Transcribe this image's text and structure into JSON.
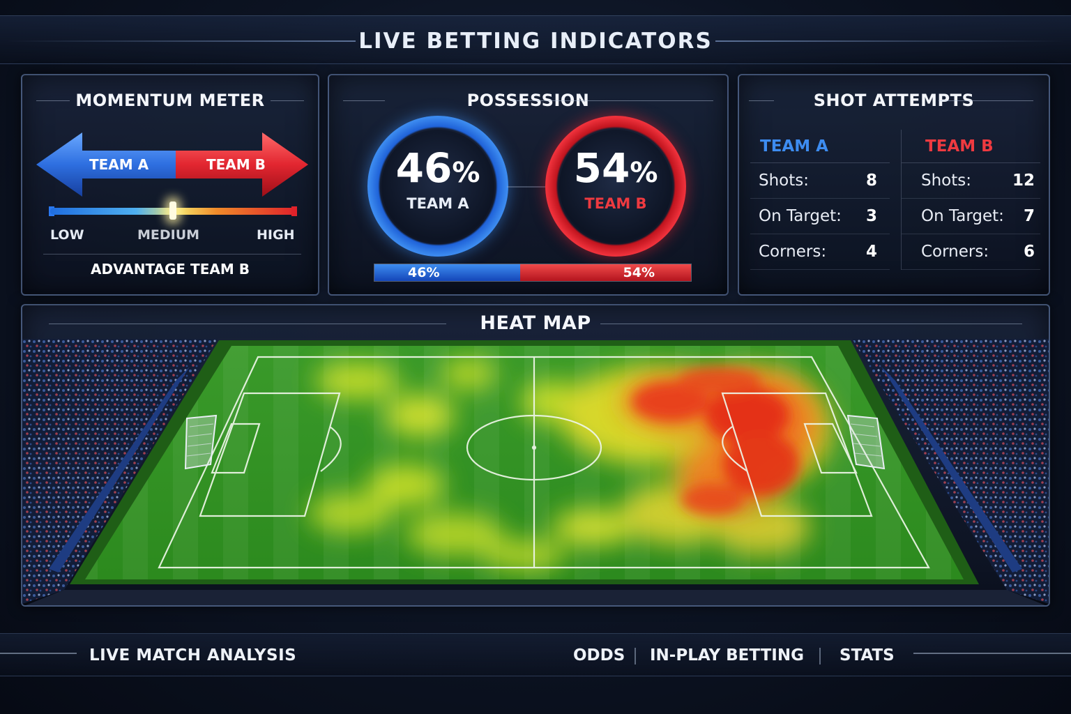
{
  "page_title": "LIVE BETTING INDICATORS",
  "colors": {
    "team_a": "#3d8cf0",
    "team_b": "#e8232d",
    "accent": "#f5e36a"
  },
  "momentum": {
    "title": "MOMENTUM METER",
    "team_a_label": "TEAM A",
    "team_b_label": "TEAM B",
    "scale_low": "LOW",
    "scale_medium": "MEDIUM",
    "scale_high": "HIGH",
    "level": 0.5,
    "advantage_text": "ADVANTAGE TEAM B"
  },
  "possession": {
    "title": "POSSESSION",
    "team_a": {
      "value": "46",
      "sign": "%",
      "label": "TEAM A",
      "bar_label": "46%",
      "fraction": 0.46
    },
    "team_b": {
      "value": "54",
      "sign": "%",
      "label": "TEAM B",
      "bar_label": "54%",
      "fraction": 0.54
    }
  },
  "shots": {
    "title": "SHOT ATTEMPTS",
    "team_a": {
      "name": "TEAM A",
      "rows": [
        {
          "label": "Shots:",
          "value": "8"
        },
        {
          "label": "On Target:",
          "value": "3"
        },
        {
          "label": "Corners:",
          "value": "4"
        }
      ]
    },
    "team_b": {
      "name": "TEAM B",
      "rows": [
        {
          "label": "Shots:",
          "value": "12"
        },
        {
          "label": "On Target:",
          "value": "7"
        },
        {
          "label": "Corners:",
          "value": "6"
        }
      ]
    }
  },
  "heatmap": {
    "title": "HEAT MAP"
  },
  "footer": {
    "title": "LIVE MATCH ANALYSIS",
    "nav": [
      "ODDS",
      "IN-PLAY BETTING",
      "STATS"
    ]
  }
}
